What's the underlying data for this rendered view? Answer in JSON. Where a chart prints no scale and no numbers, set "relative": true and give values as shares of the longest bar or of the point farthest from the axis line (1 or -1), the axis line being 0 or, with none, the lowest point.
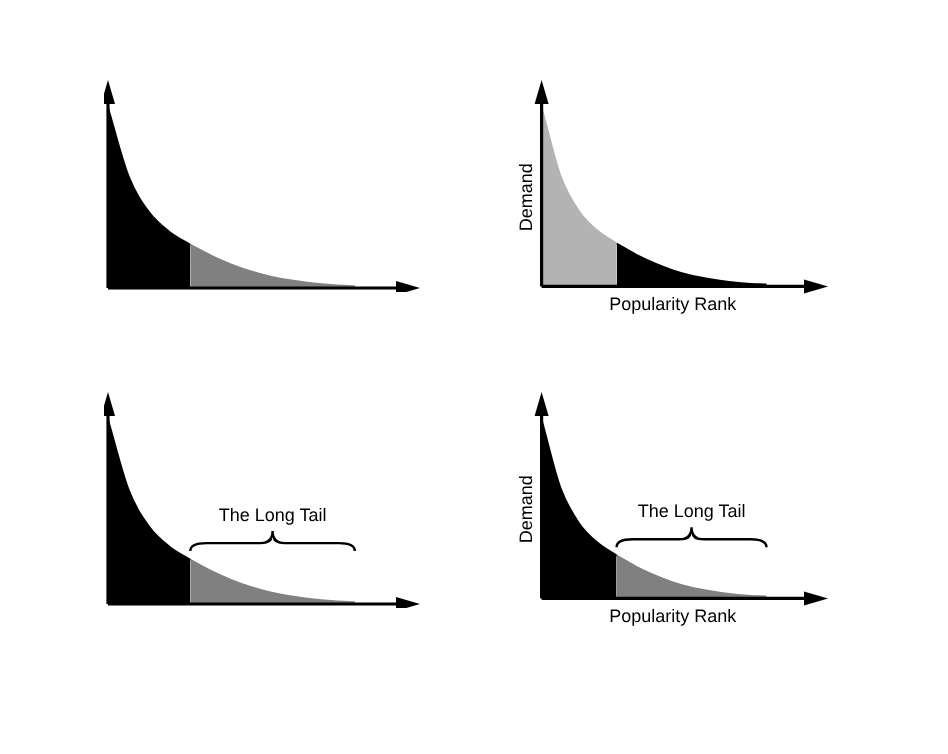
{
  "chart_data": [
    {
      "type": "area",
      "relative": true,
      "legend": false,
      "grid": false,
      "tick_labels": false,
      "categories": [
        null,
        null,
        null,
        null,
        null,
        null,
        null,
        null,
        null,
        null,
        null,
        null,
        null,
        null,
        null
      ],
      "series": [
        {
          "color": "#000000",
          "values": [
            1,
            0.62,
            0.42,
            0.31,
            0.24,
            null,
            null,
            null,
            null,
            null,
            null,
            null,
            null,
            null,
            null
          ]
        },
        {
          "color": "#808080",
          "values": [
            null,
            null,
            null,
            null,
            0.24,
            0.18,
            0.13,
            0.09,
            0.06,
            0.04,
            0.025,
            0.015,
            0.01,
            null,
            null
          ]
        }
      ]
    },
    {
      "type": "area",
      "relative": true,
      "legend": false,
      "grid": false,
      "tick_labels": false,
      "xlabel": "Popularity Rank",
      "ylabel": "Demand",
      "categories": [
        null,
        null,
        null,
        null,
        null,
        null,
        null,
        null,
        null,
        null,
        null,
        null,
        null,
        null,
        null
      ],
      "series": [
        {
          "color": "#b3b3b3",
          "values": [
            1,
            0.62,
            0.42,
            0.31,
            0.24,
            null,
            null,
            null,
            null,
            null,
            null,
            null,
            null,
            null,
            null
          ]
        },
        {
          "color": "#000000",
          "values": [
            null,
            null,
            null,
            null,
            0.24,
            0.18,
            0.13,
            0.09,
            0.06,
            0.04,
            0.025,
            0.015,
            0.01,
            null,
            null
          ]
        }
      ]
    },
    {
      "type": "area",
      "relative": true,
      "legend": false,
      "grid": false,
      "tick_labels": false,
      "annotations": [
        "The Long Tail"
      ],
      "categories": [
        null,
        null,
        null,
        null,
        null,
        null,
        null,
        null,
        null,
        null,
        null,
        null,
        null,
        null,
        null
      ],
      "series": [
        {
          "color": "#000000",
          "values": [
            1,
            0.62,
            0.42,
            0.31,
            0.24,
            null,
            null,
            null,
            null,
            null,
            null,
            null,
            null,
            null,
            null
          ]
        },
        {
          "color": "#808080",
          "values": [
            null,
            null,
            null,
            null,
            0.24,
            0.18,
            0.13,
            0.09,
            0.06,
            0.04,
            0.025,
            0.015,
            0.01,
            null,
            null
          ]
        }
      ]
    },
    {
      "type": "area",
      "relative": true,
      "legend": false,
      "grid": false,
      "tick_labels": false,
      "xlabel": "Popularity Rank",
      "ylabel": "Demand",
      "annotations": [
        "The Long Tail"
      ],
      "categories": [
        null,
        null,
        null,
        null,
        null,
        null,
        null,
        null,
        null,
        null,
        null,
        null,
        null,
        null,
        null
      ],
      "series": [
        {
          "color": "#000000",
          "values": [
            1,
            0.62,
            0.42,
            0.31,
            0.24,
            null,
            null,
            null,
            null,
            null,
            null,
            null,
            null,
            null,
            null
          ]
        },
        {
          "color": "#808080",
          "values": [
            null,
            null,
            null,
            null,
            0.24,
            0.18,
            0.13,
            0.09,
            0.06,
            0.04,
            0.025,
            0.015,
            0.01,
            null,
            null
          ]
        }
      ]
    }
  ]
}
